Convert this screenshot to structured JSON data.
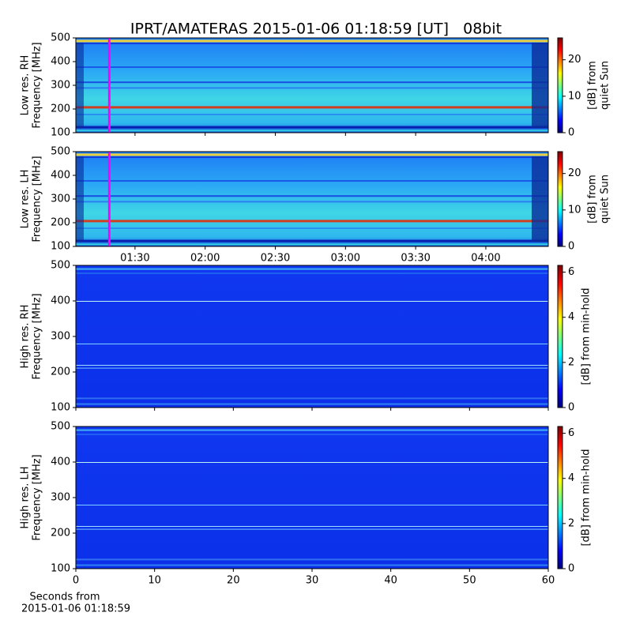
{
  "chart_data": [
    {
      "type": "heatmap",
      "title": "IPRT/AMATERAS 2015-01-06 01:18:59 [UT]   08bit",
      "ylabel": [
        "Low res. RH",
        "Frequency [MHz]"
      ],
      "ylim": [
        100,
        500
      ],
      "yticks": [
        100,
        200,
        300,
        400,
        500
      ],
      "xlim": [
        64.7,
        266.7
      ],
      "marker": 79,
      "marker_color": "#ff00ff",
      "colorbar_label": [
        "[dB] from",
        "quiet Sun"
      ],
      "clim": [
        0,
        26
      ],
      "cticks": [
        0,
        10,
        20
      ]
    },
    {
      "type": "heatmap",
      "ylabel": [
        "Low res. LH",
        "Frequency [MHz]"
      ],
      "ylim": [
        100,
        500
      ],
      "yticks": [
        100,
        200,
        300,
        400,
        500
      ],
      "xlim": [
        64.7,
        266.7
      ],
      "xticks": [
        {
          "value": 90,
          "label": "01:30"
        },
        {
          "value": 120,
          "label": "02:00"
        },
        {
          "value": 150,
          "label": "02:30"
        },
        {
          "value": 180,
          "label": "03:00"
        },
        {
          "value": 210,
          "label": "03:30"
        },
        {
          "value": 240,
          "label": "04:00"
        }
      ],
      "marker": 79,
      "marker_color": "#ff00ff",
      "colorbar_label": [
        "[dB] from",
        "quiet Sun"
      ],
      "clim": [
        0,
        26
      ],
      "cticks": [
        0,
        10,
        20
      ]
    },
    {
      "type": "heatmap",
      "ylabel": [
        "High res. RH",
        "Frequency [MHz]"
      ],
      "ylim": [
        100,
        500
      ],
      "yticks": [
        100,
        200,
        300,
        400,
        500
      ],
      "xlim": [
        0,
        60
      ],
      "colorbar_label": [
        "[dB] from min-hold"
      ],
      "clim": [
        0,
        6.3
      ],
      "cticks": [
        0,
        2,
        4,
        6
      ]
    },
    {
      "type": "heatmap",
      "ylabel": [
        "High res. LH",
        "Frequency [MHz]"
      ],
      "ylim": [
        100,
        500
      ],
      "yticks": [
        100,
        200,
        300,
        400,
        500
      ],
      "xlim": [
        0,
        60
      ],
      "xticks": [
        0,
        10,
        20,
        30,
        40,
        50,
        60
      ],
      "xlabel": [
        "Seconds from",
        "2015-01-06 01:18:59"
      ],
      "colorbar_label": [
        "[dB] from min-hold"
      ],
      "clim": [
        0,
        6.3
      ],
      "cticks": [
        0,
        2,
        4,
        6
      ]
    }
  ]
}
